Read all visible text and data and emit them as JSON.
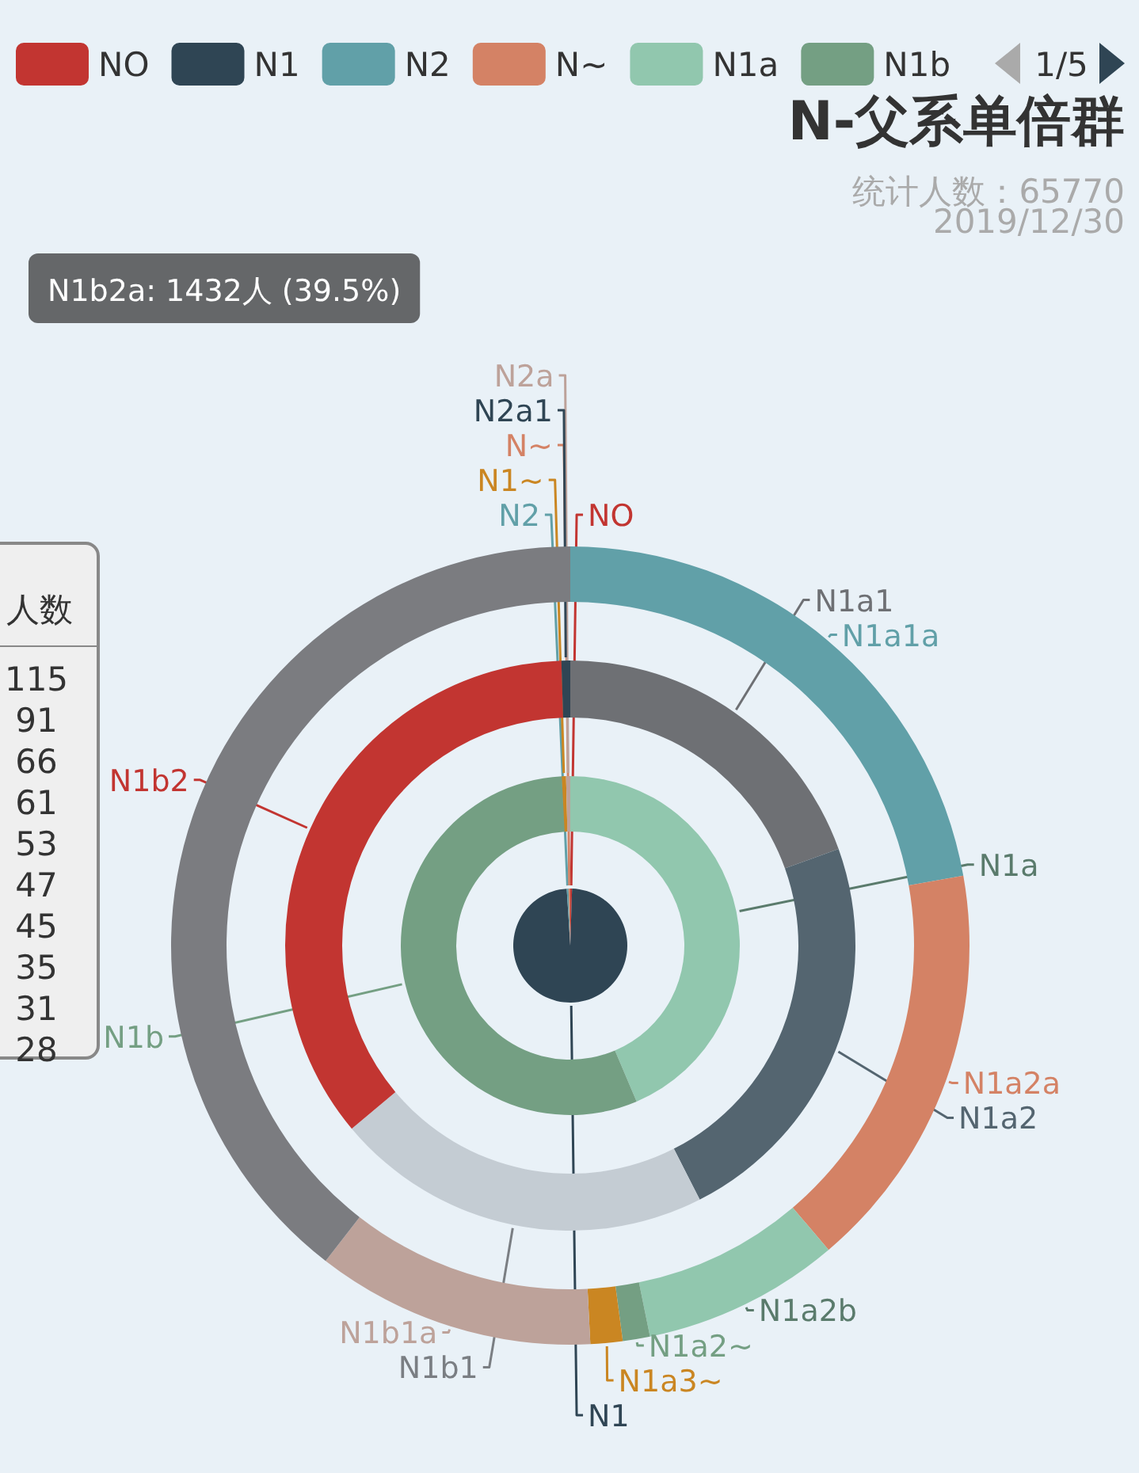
{
  "chart_data": [
    {
      "type": "other",
      "title": "N-父系单倍群",
      "subtitle": "统计人数：65770",
      "annotations": [
        "2019/12/30"
      ]
    },
    {
      "type": "pie",
      "annotations": [
        "1/5"
      ],
      "legend": "top",
      "categories": [
        "NO",
        "N1",
        "N2",
        "N~"
      ],
      "values": [
        0.5,
        98.5,
        0.5,
        0.5
      ],
      "colors": [
        "#c23531",
        "#2f4554",
        "#61a0a8",
        "#d48265"
      ]
    },
    {
      "type": "donut",
      "categories": [
        "N1a",
        "N1b",
        "N1~",
        "N2a"
      ],
      "values": [
        43.6,
        55.6,
        0.4,
        0.4
      ],
      "colors": [
        "#91c7ae",
        "#749f83",
        "#ca8622",
        "#bda29a"
      ]
    },
    {
      "type": "donut",
      "categories": [
        "N1a1",
        "N1a2",
        "N1b1",
        "N1b2",
        "N2a1"
      ],
      "values": [
        19.5,
        23.0,
        21.4,
        35.6,
        0.5
      ],
      "colors": [
        "#6e7074",
        "#546570",
        "#c4ccd3",
        "#c23531",
        "#2f4554"
      ]
    },
    {
      "type": "donut",
      "categories": [
        "N1a1a",
        "N1a2a",
        "N1a2b",
        "N1a2~",
        "N1a3~",
        "N1b1a",
        null
      ],
      "values": [
        22.2,
        16.6,
        8.0,
        1.1,
        1.3,
        11.3,
        39.5
      ],
      "colors": [
        "#61a0a8",
        "#d48265",
        "#91c7ae",
        "#749f83",
        "#ca8622",
        "#bda29a",
        "#7b7c80"
      ],
      "annotations": [
        "N1b2a: 1432人 (39.5%)"
      ]
    },
    {
      "type": "other",
      "annotations": [
        "人数",
        "115",
        "91",
        "66",
        "61",
        "53",
        "47",
        "45",
        "35",
        "31",
        "28"
      ]
    }
  ]
}
